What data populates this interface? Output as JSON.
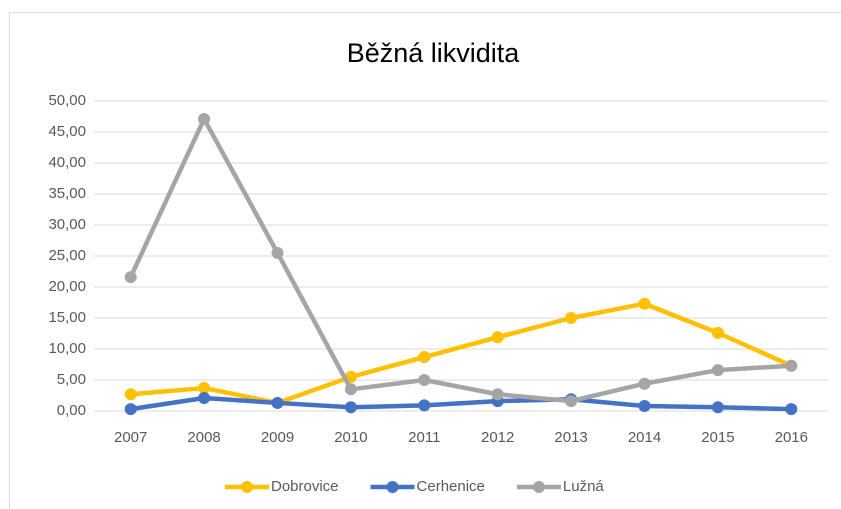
{
  "chart_data": {
    "type": "line",
    "title": "Běžná likvidita",
    "categories": [
      "2007",
      "2008",
      "2009",
      "2010",
      "2011",
      "2012",
      "2013",
      "2014",
      "2015",
      "2016"
    ],
    "series": [
      {
        "name": "Dobrovice",
        "color": "#ffc000",
        "values": [
          2.7,
          3.7,
          1.3,
          5.5,
          8.7,
          11.9,
          15.0,
          17.3,
          12.6,
          7.3
        ]
      },
      {
        "name": "Cerhenice",
        "color": "#4472c4",
        "values": [
          0.3,
          2.1,
          1.3,
          0.6,
          0.9,
          1.6,
          1.9,
          0.8,
          0.6,
          0.3
        ]
      },
      {
        "name": "Lužná",
        "color": "#a5a5a5",
        "values": [
          21.6,
          47.1,
          25.5,
          3.5,
          5.0,
          2.7,
          1.6,
          4.4,
          6.6,
          7.3
        ]
      }
    ],
    "ylim": [
      0,
      50
    ],
    "yticks": [
      {
        "value": 0,
        "label": "0,00"
      },
      {
        "value": 5,
        "label": "5,00"
      },
      {
        "value": 10,
        "label": "10,00"
      },
      {
        "value": 15,
        "label": "15,00"
      },
      {
        "value": 20,
        "label": "20,00"
      },
      {
        "value": 25,
        "label": "25,00"
      },
      {
        "value": 30,
        "label": "30,00"
      },
      {
        "value": 35,
        "label": "35,00"
      },
      {
        "value": 40,
        "label": "40,00"
      },
      {
        "value": 45,
        "label": "45,00"
      },
      {
        "value": 50,
        "label": "50,00"
      }
    ],
    "grid": true,
    "legend": "bottom"
  }
}
